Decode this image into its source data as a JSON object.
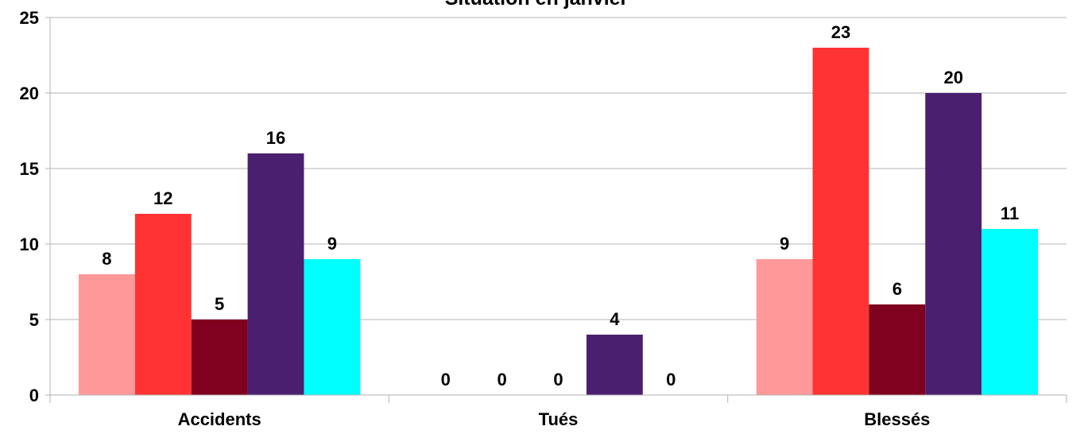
{
  "chart_data": {
    "type": "bar",
    "title": "Situation en janvier",
    "categories": [
      "Accidents",
      "Tués",
      "Blessés"
    ],
    "series": [
      {
        "color": "#ff9999",
        "values": [
          8,
          0,
          9
        ]
      },
      {
        "color": "#ff3333",
        "values": [
          12,
          0,
          23
        ]
      },
      {
        "color": "#800020",
        "values": [
          5,
          0,
          6
        ]
      },
      {
        "color": "#4b1f6f",
        "values": [
          16,
          4,
          20
        ]
      },
      {
        "color": "#00ffff",
        "values": [
          9,
          0,
          11
        ]
      }
    ],
    "ylim": [
      0,
      25
    ],
    "yticks": [
      0,
      5,
      10,
      15,
      20,
      25
    ],
    "grid": true,
    "legend": "none",
    "data_labels": true
  }
}
